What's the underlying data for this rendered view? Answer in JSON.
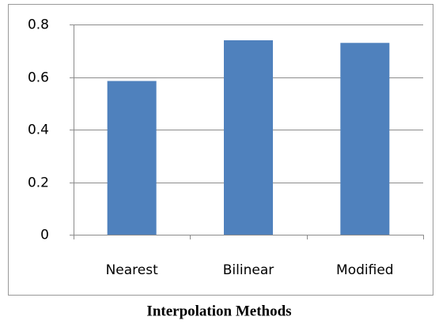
{
  "chart_data": {
    "type": "bar",
    "title": "Interpolation Methods",
    "categories": [
      "Nearest",
      "Bilinear",
      "Modified"
    ],
    "values": [
      0.585,
      0.74,
      0.73
    ],
    "color": "#4f81bd",
    "ylim": [
      0,
      0.8
    ],
    "yticks": [
      0,
      0.2,
      0.4,
      0.6,
      0.8
    ],
    "grid": true
  }
}
